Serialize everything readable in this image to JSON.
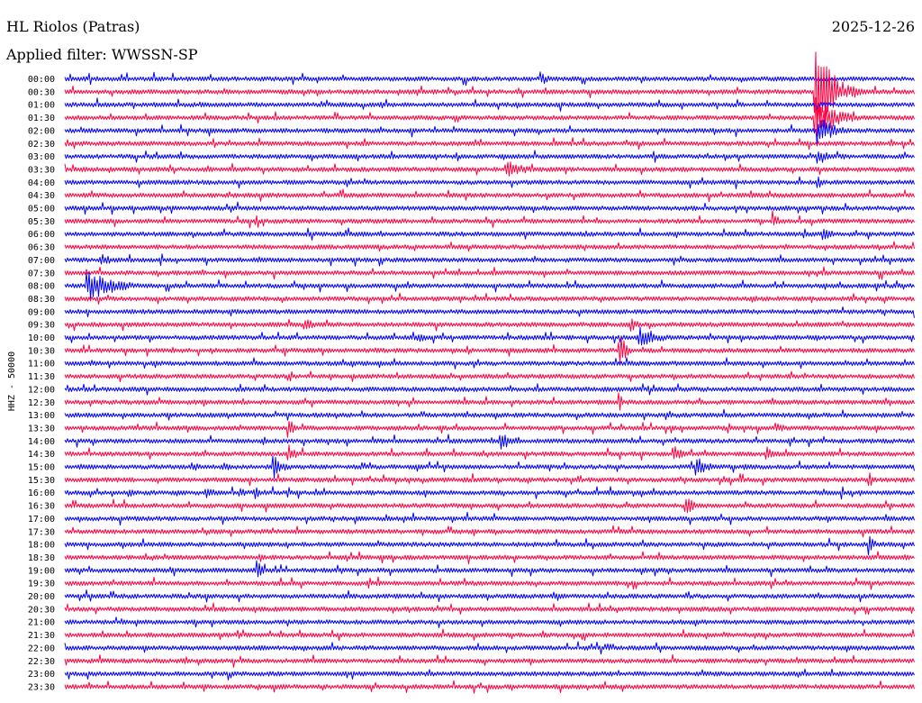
{
  "chart_data": {
    "type": "line",
    "title": "HL Riolos (Patras)",
    "subtitle": "Applied filter: WWSSN-SP",
    "date": "2025-12-26",
    "ylabel": "HHZ - 50000",
    "row_labels": [
      "00:00",
      "00:30",
      "01:00",
      "01:30",
      "02:00",
      "02:30",
      "03:00",
      "03:30",
      "04:00",
      "04:30",
      "05:00",
      "05:30",
      "06:00",
      "06:30",
      "07:00",
      "07:30",
      "08:00",
      "08:30",
      "09:00",
      "09:30",
      "10:00",
      "10:30",
      "11:00",
      "11:30",
      "12:00",
      "12:30",
      "13:00",
      "13:30",
      "14:00",
      "14:30",
      "15:00",
      "15:30",
      "16:00",
      "16:30",
      "17:00",
      "17:30",
      "18:00",
      "18:30",
      "19:00",
      "19:30",
      "20:00",
      "20:30",
      "21:00",
      "21:30",
      "22:00",
      "22:30",
      "23:00",
      "23:30"
    ],
    "line_colors": [
      "#0000ff",
      "#ff0040"
    ],
    "x_range_minutes": [
      0,
      30
    ],
    "events": [
      {
        "row": "00:00",
        "minute": 16.8,
        "amplitude": 0.55,
        "duration_min": 0.6
      },
      {
        "row": "00:00",
        "minute": 7.3,
        "amplitude": 0.2,
        "duration_min": 0.2
      },
      {
        "row": "00:30",
        "minute": 26.5,
        "amplitude": 4.5,
        "duration_min": 0.9
      },
      {
        "row": "01:00",
        "minute": 4.8,
        "amplitude": 0.25,
        "duration_min": 1.2
      },
      {
        "row": "01:00",
        "minute": 11.2,
        "amplitude": 0.3,
        "duration_min": 0.3
      },
      {
        "row": "01:30",
        "minute": 26.5,
        "amplitude": 1.6,
        "duration_min": 1.3
      },
      {
        "row": "01:30",
        "minute": 15.4,
        "amplitude": 0.3,
        "duration_min": 0.2
      },
      {
        "row": "01:30",
        "minute": 4.8,
        "amplitude": 0.15,
        "duration_min": 0.6
      },
      {
        "row": "02:00",
        "minute": 26.6,
        "amplitude": 1.2,
        "duration_min": 0.9
      },
      {
        "row": "02:30",
        "minute": 10.6,
        "amplitude": 0.35,
        "duration_min": 0.5
      },
      {
        "row": "02:30",
        "minute": 0.1,
        "amplitude": 0.3,
        "duration_min": 0.1
      },
      {
        "row": "03:00",
        "minute": 26.6,
        "amplitude": 0.9,
        "duration_min": 0.5
      },
      {
        "row": "03:00",
        "minute": 27.5,
        "amplitude": 0.3,
        "duration_min": 0.2
      },
      {
        "row": "03:30",
        "minute": 15.6,
        "amplitude": 0.75,
        "duration_min": 1.1
      },
      {
        "row": "03:30",
        "minute": 13.3,
        "amplitude": 0.2,
        "duration_min": 0.3
      },
      {
        "row": "03:30",
        "minute": 18.5,
        "amplitude": 0.15,
        "duration_min": 0.8
      },
      {
        "row": "04:00",
        "minute": 16.0,
        "amplitude": 0.2,
        "duration_min": 0.3
      },
      {
        "row": "04:00",
        "minute": 26.6,
        "amplitude": 0.5,
        "duration_min": 0.3
      },
      {
        "row": "04:30",
        "minute": 18.2,
        "amplitude": 0.2,
        "duration_min": 0.1
      },
      {
        "row": "05:30",
        "minute": 25.0,
        "amplitude": 0.9,
        "duration_min": 0.3
      },
      {
        "row": "06:00",
        "minute": 26.8,
        "amplitude": 0.5,
        "duration_min": 0.6
      },
      {
        "row": "06:30",
        "minute": 25.5,
        "amplitude": 0.25,
        "duration_min": 0.6
      },
      {
        "row": "07:00",
        "minute": 1.3,
        "amplitude": 0.5,
        "duration_min": 0.7
      },
      {
        "row": "07:30",
        "minute": 4.0,
        "amplitude": 0.2,
        "duration_min": 0.1
      },
      {
        "row": "08:00",
        "minute": 0.8,
        "amplitude": 1.3,
        "duration_min": 1.6
      },
      {
        "row": "08:30",
        "minute": 24.3,
        "amplitude": 0.35,
        "duration_min": 0.5
      },
      {
        "row": "09:30",
        "minute": 8.5,
        "amplitude": 0.55,
        "duration_min": 0.5
      },
      {
        "row": "09:30",
        "minute": 20.0,
        "amplitude": 0.55,
        "duration_min": 0.5
      },
      {
        "row": "10:00",
        "minute": 20.3,
        "amplitude": 1.0,
        "duration_min": 1.0
      },
      {
        "row": "10:00",
        "minute": 12.5,
        "amplitude": 0.35,
        "duration_min": 1.0
      },
      {
        "row": "10:00",
        "minute": 23.4,
        "amplitude": 0.3,
        "duration_min": 0.3
      },
      {
        "row": "10:30",
        "minute": 19.6,
        "amplitude": 1.6,
        "duration_min": 0.4
      },
      {
        "row": "10:30",
        "minute": 10.9,
        "amplitude": 0.3,
        "duration_min": 0.4
      },
      {
        "row": "10:30",
        "minute": 3.8,
        "amplitude": 0.3,
        "duration_min": 0.3
      },
      {
        "row": "12:00",
        "minute": 0.7,
        "amplitude": 0.45,
        "duration_min": 0.1
      },
      {
        "row": "12:30",
        "minute": 19.6,
        "amplitude": 0.9,
        "duration_min": 0.1
      },
      {
        "row": "13:30",
        "minute": 7.9,
        "amplitude": 0.9,
        "duration_min": 0.3
      },
      {
        "row": "13:30",
        "minute": 25.1,
        "amplitude": 0.55,
        "duration_min": 0.5
      },
      {
        "row": "14:00",
        "minute": 15.4,
        "amplitude": 0.75,
        "duration_min": 0.8
      },
      {
        "row": "14:30",
        "minute": 7.9,
        "amplitude": 0.8,
        "duration_min": 0.4
      },
      {
        "row": "14:30",
        "minute": 21.5,
        "amplitude": 0.65,
        "duration_min": 0.6
      },
      {
        "row": "14:30",
        "minute": 24.8,
        "amplitude": 0.7,
        "duration_min": 0.5
      },
      {
        "row": "15:00",
        "minute": 0.5,
        "amplitude": 0.4,
        "duration_min": 0.8
      },
      {
        "row": "15:00",
        "minute": 4.5,
        "amplitude": 0.5,
        "duration_min": 0.4
      },
      {
        "row": "15:00",
        "minute": 5.6,
        "amplitude": 0.5,
        "duration_min": 0.4
      },
      {
        "row": "15:00",
        "minute": 7.4,
        "amplitude": 0.9,
        "duration_min": 0.6
      },
      {
        "row": "15:00",
        "minute": 22.3,
        "amplitude": 0.8,
        "duration_min": 0.7
      },
      {
        "row": "15:00",
        "minute": 24.0,
        "amplitude": 0.4,
        "duration_min": 0.5
      },
      {
        "row": "15:30",
        "minute": 28.4,
        "amplitude": 0.6,
        "duration_min": 0.5
      },
      {
        "row": "16:00",
        "minute": 2.3,
        "amplitude": 0.4,
        "duration_min": 0.4
      },
      {
        "row": "16:00",
        "minute": 5.0,
        "amplitude": 0.45,
        "duration_min": 0.6
      },
      {
        "row": "16:00",
        "minute": 6.2,
        "amplitude": 0.45,
        "duration_min": 0.4
      },
      {
        "row": "16:00",
        "minute": 6.7,
        "amplitude": 0.65,
        "duration_min": 0.5
      },
      {
        "row": "16:30",
        "minute": 21.9,
        "amplitude": 1.1,
        "duration_min": 0.4
      },
      {
        "row": "16:30",
        "minute": 25.7,
        "amplitude": 0.25,
        "duration_min": 0.6
      },
      {
        "row": "18:00",
        "minute": 28.4,
        "amplitude": 0.9,
        "duration_min": 0.3
      },
      {
        "row": "18:30",
        "minute": 6.9,
        "amplitude": 0.45,
        "duration_min": 0.3
      },
      {
        "row": "18:30",
        "minute": 29.7,
        "amplitude": 0.4,
        "duration_min": 0.2
      },
      {
        "row": "19:00",
        "minute": 6.8,
        "amplitude": 0.9,
        "duration_min": 0.3
      },
      {
        "row": "19:00",
        "minute": 0.4,
        "amplitude": 0.2,
        "duration_min": 0.5
      },
      {
        "row": "19:00",
        "minute": 20.5,
        "amplitude": 0.2,
        "duration_min": 2.0
      },
      {
        "row": "20:00",
        "minute": 17.3,
        "amplitude": 0.45,
        "duration_min": 0.6
      },
      {
        "row": "22:30",
        "minute": 4.3,
        "amplitude": 0.5,
        "duration_min": 0.1
      }
    ]
  }
}
